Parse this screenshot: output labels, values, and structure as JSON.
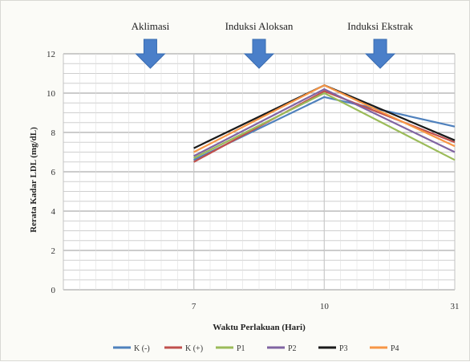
{
  "chart_data": {
    "type": "line",
    "xlabel": "Waktu Perlakuan (Hari)",
    "ylabel": "Rerata Kadar LDL (mg/dL)",
    "categories": [
      "7",
      "10",
      "31"
    ],
    "ylim": [
      0,
      12
    ],
    "yticks": [
      0,
      2,
      4,
      6,
      8,
      10,
      12
    ],
    "grid": true,
    "legend_position": "bottom",
    "series": [
      {
        "name": "K (-)",
        "color": "#4f81bd",
        "values": [
          6.6,
          9.8,
          8.3
        ]
      },
      {
        "name": "K (+)",
        "color": "#c0504d",
        "values": [
          6.5,
          10.1,
          7.5
        ]
      },
      {
        "name": "P1",
        "color": "#9bbb59",
        "values": [
          6.7,
          10.0,
          6.6
        ]
      },
      {
        "name": "P2",
        "color": "#8064a2",
        "values": [
          6.8,
          10.2,
          7.0
        ]
      },
      {
        "name": "P3",
        "color": "#1a1a1a",
        "values": [
          7.2,
          10.4,
          7.6
        ]
      },
      {
        "name": "P4",
        "color": "#f79646",
        "values": [
          7.0,
          10.4,
          7.3
        ]
      }
    ],
    "annotations": [
      {
        "label": "Aklimasi",
        "at_x": 6,
        "arrow_color": "#4a7fc9"
      },
      {
        "label": "Induksi Aloksan",
        "at_x": 8.5,
        "arrow_color": "#4a7fc9"
      },
      {
        "label": "Induksi Ekstrak",
        "at_x": 19,
        "arrow_color": "#4a7fc9"
      }
    ]
  }
}
